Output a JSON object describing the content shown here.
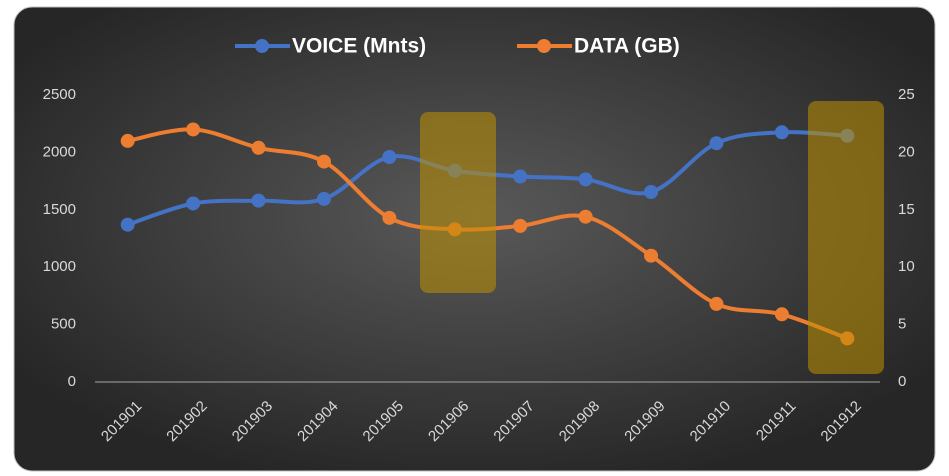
{
  "chart_data": {
    "type": "line",
    "categories": [
      "201901",
      "201902",
      "201903",
      "201904",
      "201905",
      "201906",
      "201907",
      "201908",
      "201909",
      "201910",
      "201911",
      "201912"
    ],
    "series": [
      {
        "name": "VOICE (Mnts)",
        "color": "#4472c4",
        "values": [
          1370,
          1555,
          1580,
          1595,
          1960,
          1840,
          1790,
          1765,
          1655,
          2080,
          2175,
          2145
        ]
      },
      {
        "name": "DATA (GB)",
        "color": "#ed7d31",
        "axis": "y2",
        "values": [
          21.0,
          22.0,
          20.4,
          19.2,
          14.3,
          13.3,
          13.6,
          14.4,
          11.0,
          6.8,
          5.9,
          3.8
        ]
      }
    ],
    "ylim": [
      0,
      2500
    ],
    "yticks": [
      0,
      500,
      1000,
      1500,
      2000,
      2500
    ],
    "y2lim": [
      0,
      25
    ],
    "y2ticks": [
      0,
      5,
      10,
      15,
      20,
      25
    ],
    "legend": "top",
    "smooth": true
  }
}
